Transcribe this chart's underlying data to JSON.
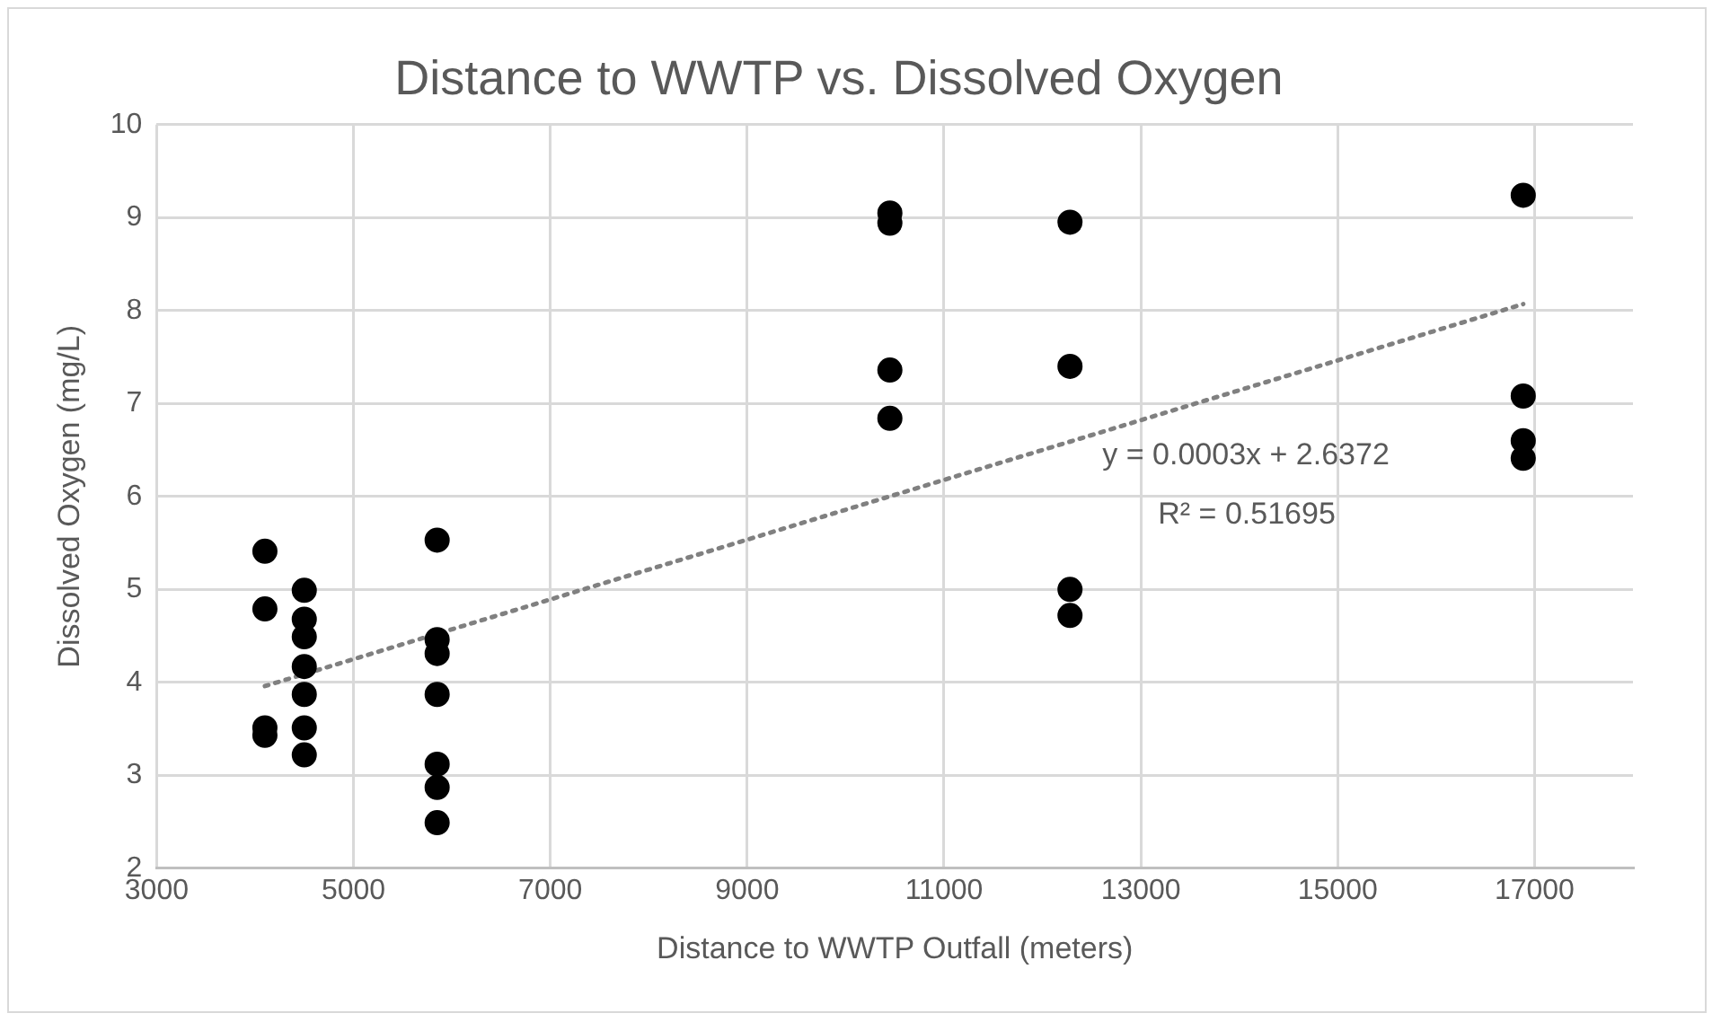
{
  "chart_data": {
    "type": "scatter",
    "title": "Distance to WWTP vs. Dissolved Oxygen",
    "xlabel": "Distance to WWTP Outfall (meters)",
    "ylabel": "Dissolved Oxygen (mg/L)",
    "series": [
      {
        "type": "scatter",
        "color": "#000000",
        "x": [
          4100,
          4100,
          4100,
          4100,
          4500,
          4500,
          4500,
          4500,
          4500,
          4500,
          4500,
          5850,
          5850,
          5850,
          5850,
          5850,
          5850,
          5850,
          10450,
          10450,
          10450,
          10450,
          12280,
          12280,
          12280,
          12280,
          16885,
          16885,
          16885,
          16885
        ],
        "values": [
          5.41,
          4.79,
          3.51,
          3.43,
          4.99,
          4.68,
          4.49,
          4.17,
          3.87,
          3.51,
          3.22,
          5.53,
          4.46,
          4.31,
          3.87,
          3.12,
          2.87,
          2.49,
          9.05,
          8.94,
          7.36,
          6.84,
          8.95,
          7.4,
          5.0,
          4.72,
          9.24,
          7.08,
          6.6,
          6.41
        ]
      },
      {
        "type": "line",
        "color": "#808080",
        "line_style": "dotted",
        "marker": "none",
        "x": [
          4100,
          16885
        ],
        "values": [
          3.96,
          8.07
        ]
      }
    ],
    "xlim": [
      3000,
      18000
    ],
    "xticks": [
      3000,
      5000,
      7000,
      9000,
      11000,
      13000,
      15000,
      17000
    ],
    "ylim": [
      2,
      10
    ],
    "yticks": [
      2,
      3,
      4,
      5,
      6,
      7,
      8,
      9,
      10
    ],
    "grid": true,
    "legend": false,
    "marker": "circle",
    "annotations": [
      "y = 0.0003x + 2.6372",
      "R² = 0.51695"
    ]
  }
}
